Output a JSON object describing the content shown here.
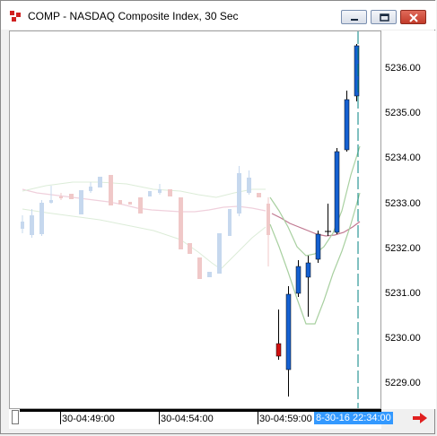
{
  "window": {
    "title": "COMP - NASDAQ Composite Index, 30 Sec"
  },
  "price_axis": {
    "labels": [
      "5236.00",
      "5235.00",
      "5234.00",
      "5233.00",
      "5232.00",
      "5231.00",
      "5230.00",
      "5229.00"
    ]
  },
  "time_axis": {
    "labels": [
      "30-04:49:00",
      "30-04:54:00",
      "30-04:59:00"
    ],
    "cursor_label": "8-30-16 22:34:00"
  },
  "colors": {
    "up": "#1560d0",
    "down": "#d01010",
    "faded_up": "#c6d8ee",
    "faded_down": "#f0c8c8",
    "ma_pink": "#c07890",
    "band_green": "#a8d0a0",
    "cursor_line": "#008080"
  },
  "icons": {
    "app": "chart-app-icon",
    "minimize": "minimize-icon",
    "restore": "restore-icon",
    "close": "close-icon",
    "nav": "red-right-arrow-icon"
  }
}
